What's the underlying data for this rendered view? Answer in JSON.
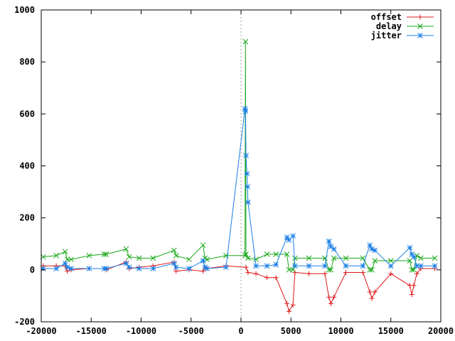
{
  "chart_data": {
    "type": "line",
    "title": "",
    "xlabel": "",
    "ylabel": "",
    "xlim": [
      -20000,
      20000
    ],
    "ylim": [
      -200,
      1000
    ],
    "grid": false,
    "legend_position": "top-right",
    "x_ticks": [
      -20000,
      -15000,
      -10000,
      -5000,
      0,
      5000,
      10000,
      15000,
      20000
    ],
    "y_ticks": [
      -200,
      0,
      200,
      400,
      600,
      800,
      1000
    ],
    "x_tick_labels": [
      "-20000",
      "-15000",
      "-10000",
      "-5000",
      "0",
      "5000",
      "10000",
      "15000",
      "20000"
    ],
    "y_tick_labels": [
      "-200",
      "0",
      "200",
      "400",
      "600",
      "800",
      "1000"
    ],
    "zero_line": {
      "x": 0,
      "style": "dotted"
    },
    "series": [
      {
        "name": "offset",
        "color": "#e0181c",
        "marker": "plus",
        "x": [
          -19800,
          -18500,
          -17600,
          -17400,
          -17000,
          -15200,
          -13700,
          -13500,
          -11500,
          -11200,
          -10200,
          -8800,
          -6700,
          -6500,
          -5200,
          -3800,
          -3600,
          -3400,
          -1500,
          500,
          700,
          1500,
          2600,
          3500,
          4600,
          4800,
          5200,
          5400,
          6800,
          8400,
          8800,
          9000,
          9300,
          10500,
          12200,
          12900,
          13100,
          13400,
          15000,
          16900,
          17100,
          17300,
          17600,
          18000,
          19400
        ],
        "values": [
          15,
          15,
          15,
          -5,
          0,
          5,
          5,
          0,
          30,
          5,
          10,
          15,
          30,
          -5,
          0,
          -5,
          10,
          5,
          15,
          10,
          -10,
          -15,
          -30,
          -30,
          -130,
          -160,
          -135,
          -10,
          -15,
          -15,
          -105,
          -130,
          -105,
          -10,
          -10,
          -85,
          -110,
          -85,
          -15,
          -60,
          -95,
          -60,
          -15,
          5,
          5
        ]
      },
      {
        "name": "delay",
        "color": "#19a81a",
        "marker": "cross",
        "x": [
          -19800,
          -18500,
          -17600,
          -17400,
          -17000,
          -15200,
          -13700,
          -13500,
          -11500,
          -11200,
          -10200,
          -8800,
          -6700,
          -6500,
          -5200,
          -3800,
          -3600,
          -3400,
          -1500,
          400,
          450,
          500,
          700,
          1500,
          2600,
          3500,
          4600,
          4800,
          5200,
          5400,
          6800,
          8400,
          8800,
          9000,
          9300,
          10500,
          12200,
          12900,
          13100,
          13400,
          15000,
          16900,
          17100,
          17300,
          17600,
          18000,
          19400
        ],
        "values": [
          50,
          55,
          70,
          40,
          40,
          55,
          60,
          60,
          80,
          50,
          45,
          45,
          75,
          55,
          40,
          95,
          45,
          40,
          55,
          55,
          878,
          60,
          45,
          40,
          60,
          60,
          60,
          0,
          0,
          45,
          45,
          45,
          0,
          0,
          45,
          45,
          45,
          0,
          0,
          35,
          35,
          35,
          0,
          0,
          55,
          45,
          45
        ]
      },
      {
        "name": "jitter",
        "color": "#1a7fe6",
        "marker": "star",
        "x": [
          -19800,
          -18500,
          -17600,
          -17400,
          -17000,
          -15200,
          -13700,
          -13500,
          -11500,
          -11200,
          -10200,
          -8800,
          -6700,
          -6500,
          -5200,
          -3800,
          -3600,
          -3400,
          -1500,
          400,
          450,
          500,
          600,
          650,
          700,
          1500,
          2600,
          3500,
          4600,
          4800,
          5200,
          5400,
          6800,
          8400,
          8800,
          9000,
          9300,
          10500,
          12200,
          12900,
          13100,
          13400,
          15000,
          16900,
          17100,
          17300,
          17600,
          18000,
          19400
        ],
        "values": [
          5,
          5,
          25,
          10,
          5,
          5,
          5,
          5,
          25,
          10,
          5,
          5,
          25,
          10,
          5,
          35,
          10,
          5,
          10,
          620,
          610,
          440,
          370,
          320,
          260,
          15,
          15,
          20,
          125,
          115,
          130,
          15,
          15,
          15,
          110,
          90,
          80,
          15,
          15,
          95,
          80,
          75,
          15,
          85,
          60,
          50,
          15,
          15,
          15
        ]
      }
    ]
  }
}
